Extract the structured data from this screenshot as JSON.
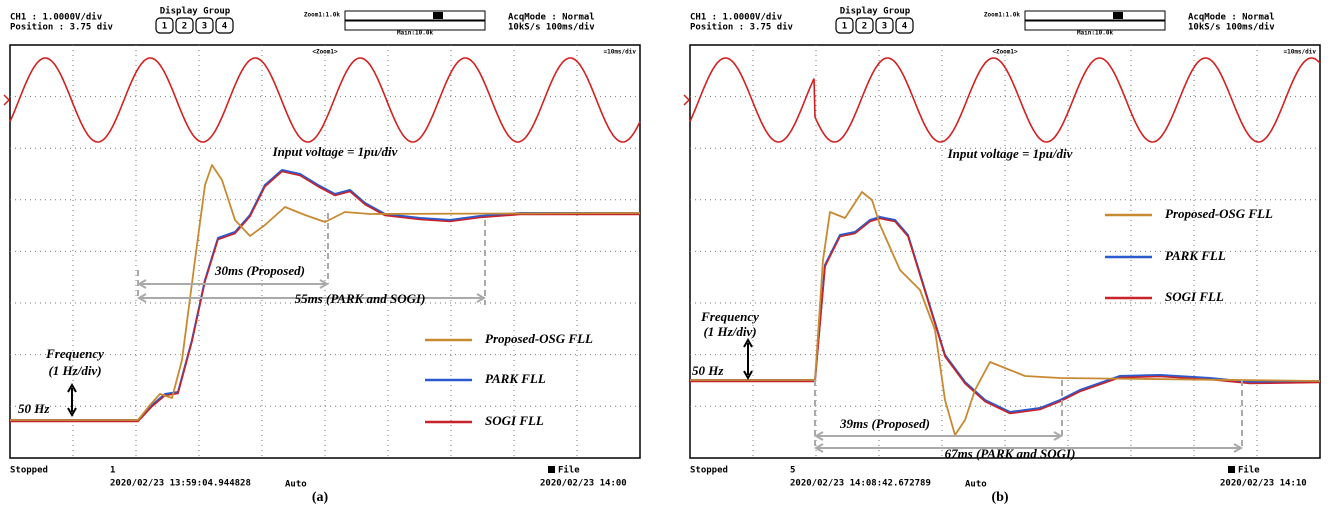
{
  "panels": [
    {
      "header": {
        "channel": "CH1 : 1.0000V/div",
        "position": "Position : 3.75 div",
        "display_group": "Display Group",
        "buttons": [
          "1",
          "2",
          "3",
          "4"
        ],
        "zoom": "Zoom1:1.0k",
        "main": "Main:10.0k",
        "acq_mode": "AcqMode : Normal",
        "rate": "10kS/s    100ms/div"
      },
      "screen": {
        "zoom_label": "<Zoom1>",
        "scale": "=10ms/div",
        "input_label": "Input voltage = 1pu/div",
        "frequency_label": "Frequency",
        "frequency_scale": "(1 Hz/div)",
        "base_label": "50 Hz",
        "proposed_time": "30ms (Proposed)",
        "park_sogi_time": "55ms (PARK and SOGI)",
        "legend": [
          "Proposed-OSG FLL",
          "PARK FLL",
          "SOGI FLL"
        ]
      },
      "footer": {
        "state": "Stopped",
        "index": "1",
        "timestamp": "2020/02/23 13:59:04.944828",
        "trigger": "Auto",
        "file": "File",
        "date": "2020/02/23 14:00",
        "caption": "(a)"
      }
    },
    {
      "header": {
        "channel": "CH1 : 1.0000V/div",
        "position": "Position : 3.75 div",
        "display_group": "Display Group",
        "buttons": [
          "1",
          "2",
          "3",
          "4"
        ],
        "zoom": "Zoom1:1.0k",
        "main": "Main:10.0k",
        "acq_mode": "AcqMode : Normal",
        "rate": "10kS/s    100ms/div"
      },
      "screen": {
        "zoom_label": "<Zoom1>",
        "scale": "=10ms/div",
        "input_label": "Input voltage = 1pu/div",
        "frequency_label": "Frequency",
        "frequency_scale": "(1 Hz/div)",
        "base_label": "50 Hz",
        "proposed_time": "39ms (Proposed)",
        "park_sogi_time": "67ms (PARK and SOGI)",
        "legend": [
          "Proposed-OSG FLL",
          "PARK FLL",
          "SOGI FLL"
        ]
      },
      "footer": {
        "state": "Stopped",
        "index": "5",
        "timestamp": "2020/02/23 14:08:42.672789",
        "trigger": "Auto",
        "file": "File",
        "date": "2020/02/23 14:10",
        "caption": "(b)"
      }
    }
  ]
}
